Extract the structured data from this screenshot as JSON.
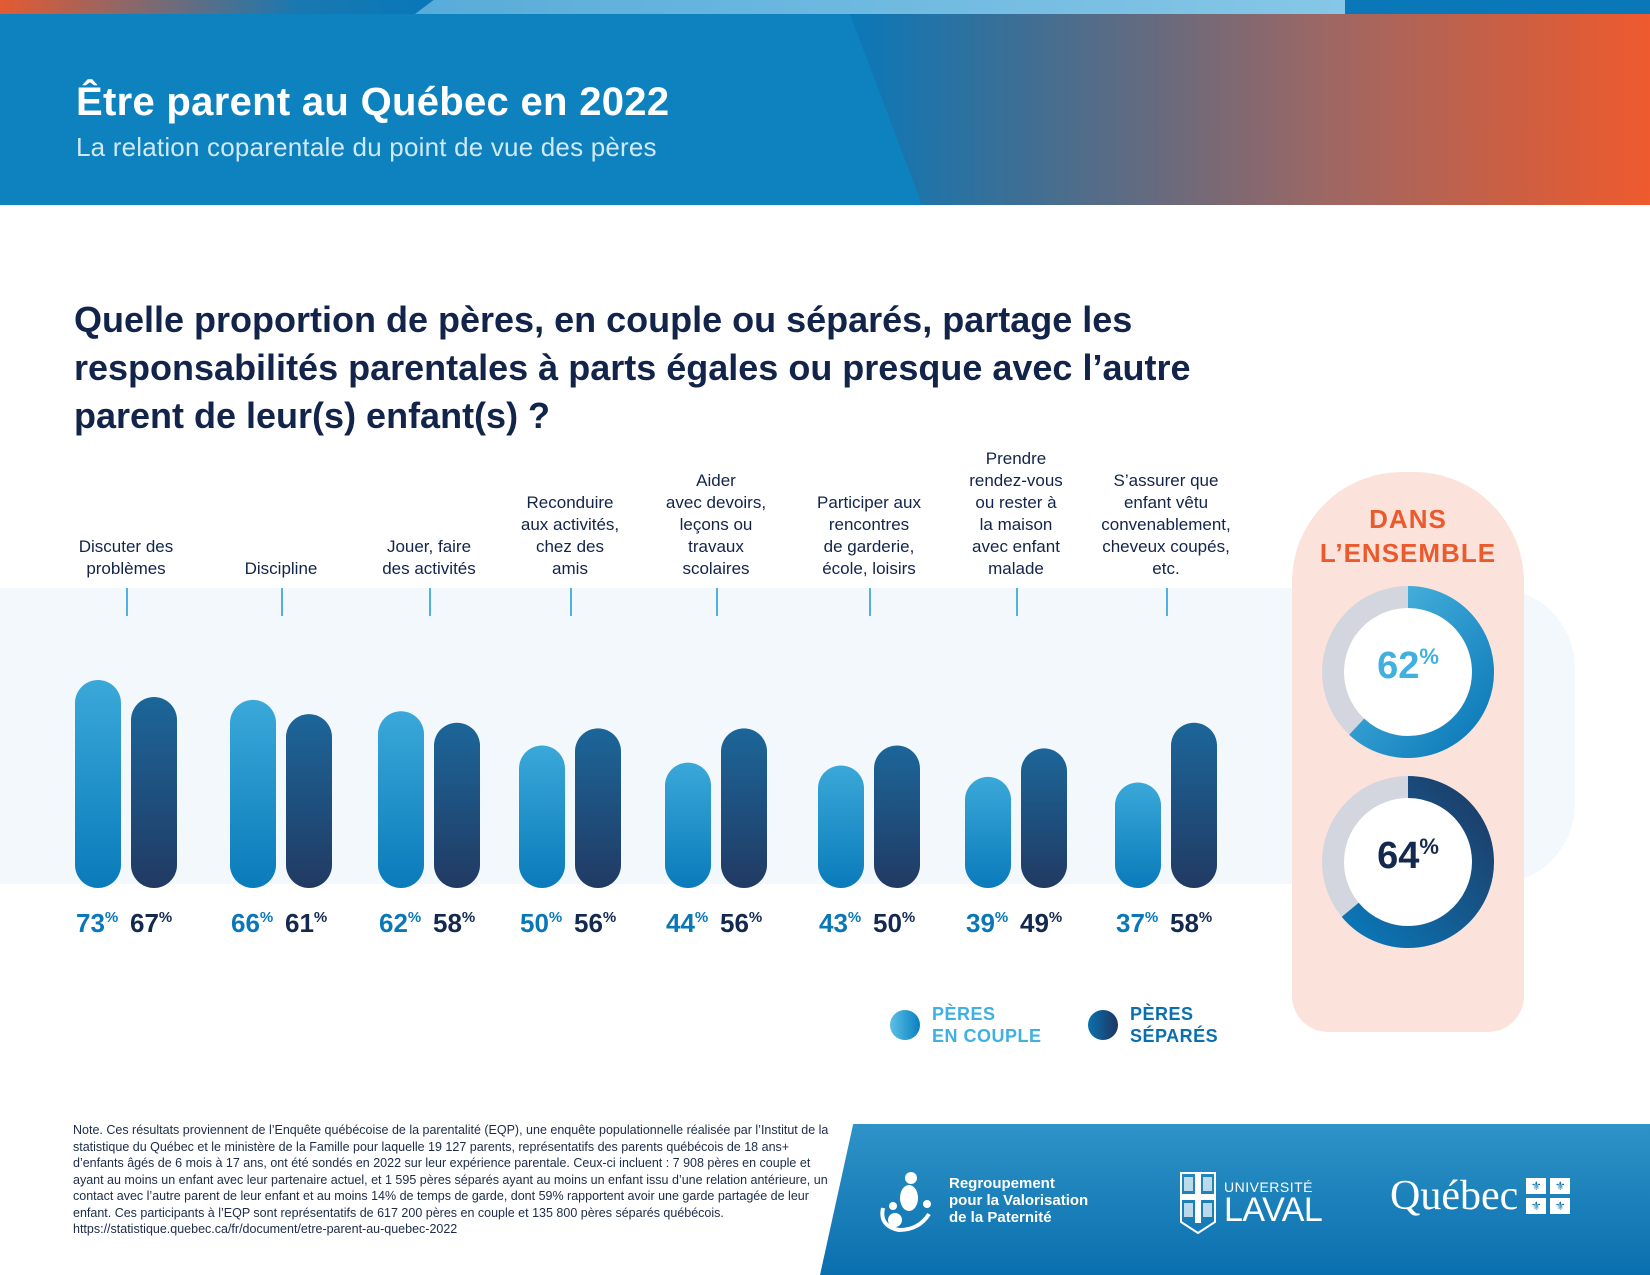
{
  "header": {
    "title": "Être parent au Québec en 2022",
    "subtitle": "La relation coparentale du point de vue des pères"
  },
  "question": "Quelle proportion de pères, en couple ou séparés, partage les responsabilités parentales à parts égales ou presque avec l’autre parent de leur(s) enfant(s) ?",
  "colors": {
    "couple": "#0a8fcc",
    "couple_light": "#3aa8d8",
    "separes": "#1e3f6a",
    "separes_light": "#1c6699",
    "accent": "#ea5a2c",
    "donut_bg": "#d3d6de"
  },
  "chart_data": {
    "type": "bar",
    "title": "Quelle proportion de pères, en couple ou séparés, partage les responsabilités parentales à parts égales ou presque avec l’autre parent de leur(s) enfant(s) ?",
    "categories": [
      "Discuter des problèmes",
      "Discipline",
      "Jouer, faire des activités",
      "Reconduire aux activités, chez des amis",
      "Aider avec devoirs, leçons ou travaux scolaires",
      "Participer aux rencontres de garderie, école, loisirs",
      "Prendre rendez-vous ou rester à la maison avec enfant malade",
      "S’assurer que enfant vêtu convenablement, cheveux coupés, etc."
    ],
    "category_lines": [
      [
        "Discuter des",
        "problèmes"
      ],
      [
        "Discipline"
      ],
      [
        "Jouer, faire",
        "des activités"
      ],
      [
        "Reconduire",
        "aux activités,",
        "chez des",
        "amis"
      ],
      [
        "Aider",
        "avec devoirs,",
        "leçons ou",
        "travaux",
        "scolaires"
      ],
      [
        "Participer aux",
        "rencontres",
        "de garderie,",
        "école, loisirs"
      ],
      [
        "Prendre",
        "rendez-vous",
        "ou rester à",
        "la maison",
        "avec enfant",
        "malade"
      ],
      [
        "S’assurer que",
        "enfant vêtu",
        "convenablement,",
        "cheveux coupés,",
        "etc."
      ]
    ],
    "series": [
      {
        "name": "Pères en couple",
        "values": [
          73,
          66,
          62,
          50,
          44,
          43,
          39,
          37
        ]
      },
      {
        "name": "Pères séparés",
        "values": [
          67,
          61,
          58,
          56,
          56,
          50,
          49,
          58
        ]
      }
    ],
    "unit": "%",
    "xlabel": "",
    "ylabel": "",
    "ylim": [
      0,
      100
    ],
    "grid": false,
    "legend": {
      "position": "bottom-right",
      "entries": [
        [
          "PÈRES",
          "EN COUPLE"
        ],
        [
          "PÈRES",
          "SÉPARÉS"
        ]
      ]
    },
    "overall": {
      "title_lines": [
        "DANS",
        "L’ENSEMBLE"
      ],
      "values": [
        {
          "series": "Pères en couple",
          "value": 62
        },
        {
          "series": "Pères séparés",
          "value": 64
        }
      ]
    }
  },
  "note": "Note. Ces résultats proviennent de l’Enquête québécoise de la parentalité (EQP), une enquête populationnelle réalisée par l’Institut de la statistique du Québec et le ministère de la Famille pour laquelle 19 127 parents, représentatifs des parents québécois de 18 ans+ d’enfants âgés de 6 mois à 17 ans, ont été sondés en 2022 sur leur expérience parentale. Ceux-ci incluent : 7 908 pères en couple et ayant au moins un enfant avec leur partenaire actuel, et 1 595 pères séparés ayant au moins un enfant issu d’une relation antérieure, un contact avec l’autre parent de leur enfant et au moins 14% de temps de garde, dont 59% rapportent avoir une garde partagée de leur enfant. Ces participants à l’EQP sont représentatifs de 617 200 pères en couple et 135 800 pères séparés québécois. https://statistique.quebec.ca/fr/document/etre-parent-au-quebec-2022",
  "footer": {
    "rvp_lines": [
      "Regroupement",
      "pour la Valorisation",
      "de la Paternité"
    ],
    "ul_top": "UNIVERSITÉ",
    "ul_bottom": "LAVAL",
    "quebec": "Québec"
  },
  "percent_sign": "%"
}
